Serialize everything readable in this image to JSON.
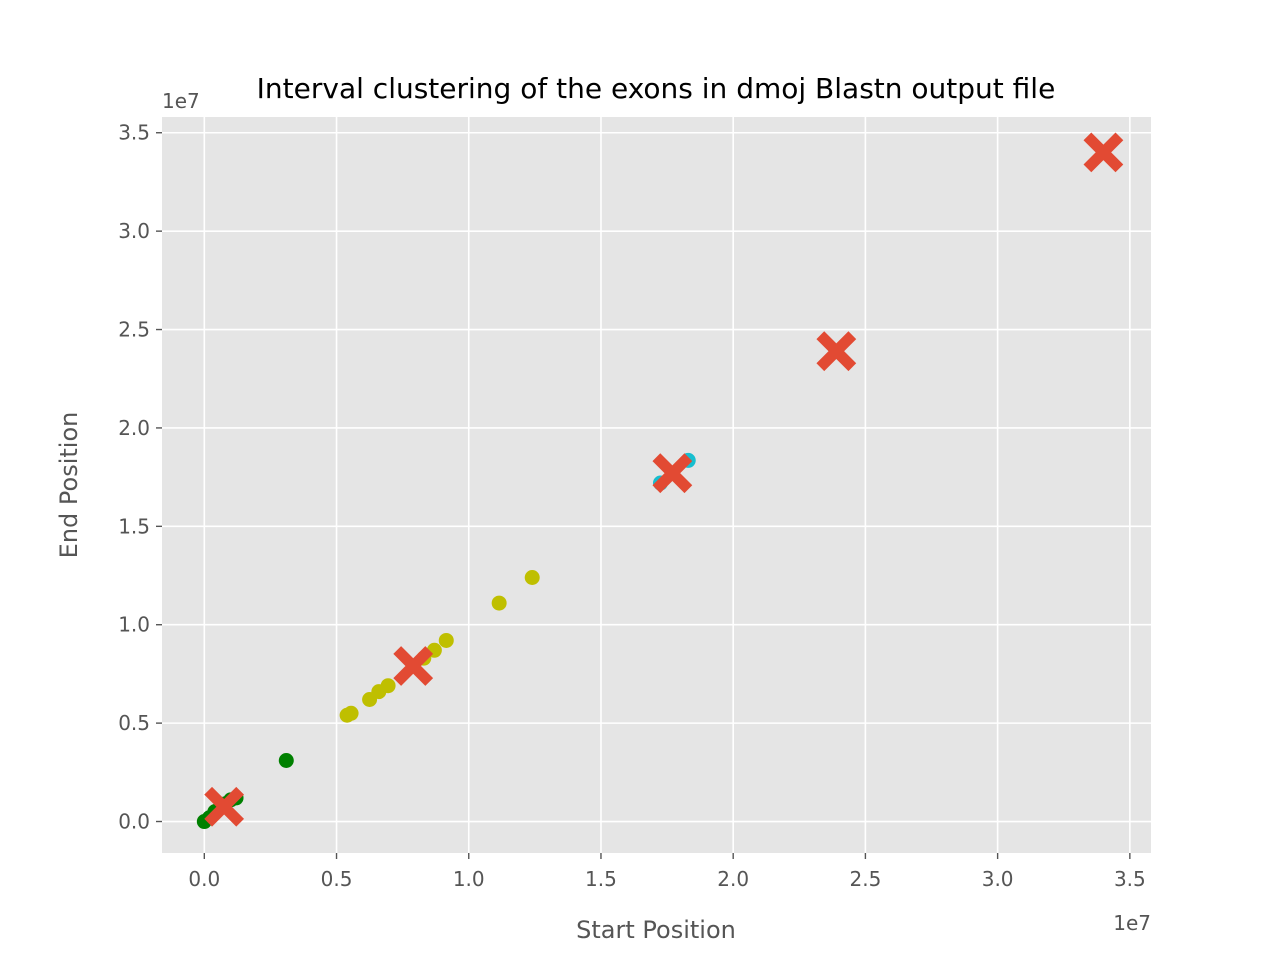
{
  "chart_data": {
    "type": "scatter",
    "title": "Interval clustering of the exons in dmoj Blastn output file",
    "xlabel": "Start Position",
    "ylabel": "End Position",
    "x_offset_label": "1e7",
    "y_offset_label": "1e7",
    "scale": 10000000,
    "xlim": [
      -0.16,
      3.58
    ],
    "ylim": [
      -0.16,
      3.58
    ],
    "xticks": [
      "0.0",
      "0.5",
      "1.0",
      "1.5",
      "2.0",
      "2.5",
      "3.0",
      "3.5"
    ],
    "yticks": [
      "0.0",
      "0.5",
      "1.0",
      "1.5",
      "2.0",
      "2.5",
      "3.0",
      "3.5"
    ],
    "tick_values": [
      0.0,
      0.5,
      1.0,
      1.5,
      2.0,
      2.5,
      3.0,
      3.5
    ],
    "grid": true,
    "background": "#e5e5e5",
    "series": [
      {
        "color": "#008000",
        "marker": "circle",
        "points": [
          [
            0.0,
            0.0
          ],
          [
            0.02,
            0.02
          ],
          [
            0.04,
            0.05
          ],
          [
            0.06,
            0.07
          ],
          [
            0.08,
            0.09
          ],
          [
            0.1,
            0.11
          ],
          [
            0.12,
            0.12
          ],
          [
            0.31,
            0.31
          ]
        ]
      },
      {
        "color": "#bfbf00",
        "marker": "circle",
        "points": [
          [
            0.54,
            0.54
          ],
          [
            0.555,
            0.55
          ],
          [
            0.625,
            0.62
          ],
          [
            0.66,
            0.66
          ],
          [
            0.695,
            0.69
          ],
          [
            0.83,
            0.83
          ],
          [
            0.87,
            0.87
          ],
          [
            0.915,
            0.92
          ],
          [
            1.115,
            1.11
          ],
          [
            1.24,
            1.24
          ]
        ]
      },
      {
        "color": "#17becf",
        "marker": "circle",
        "points": [
          [
            1.725,
            1.72
          ],
          [
            1.83,
            1.835
          ]
        ]
      },
      {
        "color": "#e24a33",
        "marker": "x",
        "points": [
          [
            0.075,
            0.075
          ],
          [
            0.79,
            0.79
          ],
          [
            1.77,
            1.77
          ],
          [
            2.39,
            2.39
          ],
          [
            3.4,
            3.4
          ]
        ]
      }
    ]
  }
}
